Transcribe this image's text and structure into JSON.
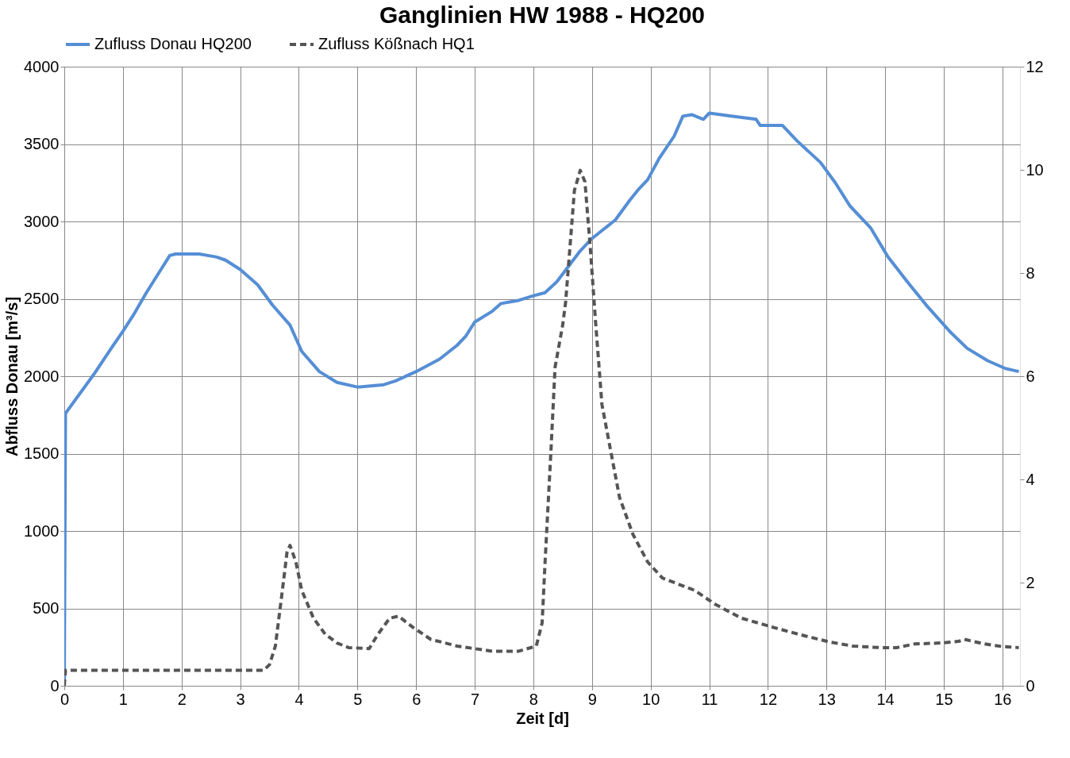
{
  "chart_data": {
    "type": "line",
    "title": "Ganglinien HW 1988 - HQ200",
    "xlabel": "Zeit [d]",
    "ylabel": "Abfluss Donau [m³/s]",
    "xlim": [
      0,
      16.3
    ],
    "xticks": [
      0,
      1,
      2,
      3,
      4,
      5,
      6,
      7,
      8,
      9,
      10,
      11,
      12,
      13,
      14,
      15,
      16
    ],
    "ylim": [
      0,
      4000
    ],
    "yticks": [
      0,
      500,
      1000,
      1500,
      2000,
      2500,
      3000,
      3500,
      4000
    ],
    "y2lim": [
      0,
      12
    ],
    "y2ticks": [
      0,
      2,
      4,
      6,
      8,
      10,
      12
    ],
    "grid": true,
    "legend": "top",
    "marker": "none",
    "series": [
      {
        "name": "Zufluss Donau HQ200",
        "color": "#558ed5",
        "line_style": "solid",
        "x": [
          0,
          0.02,
          0.5,
          0.8,
          1.0,
          1.17,
          1.4,
          1.6,
          1.8,
          1.9,
          2.3,
          2.6,
          2.75,
          3.0,
          3.3,
          3.55,
          3.85,
          4.05,
          4.35,
          4.65,
          5.0,
          5.45,
          5.65,
          6.0,
          6.4,
          6.7,
          6.85,
          7.0,
          7.3,
          7.45,
          7.75,
          8.0,
          8.2,
          8.4,
          8.6,
          8.8,
          9.0,
          9.4,
          9.65,
          9.8,
          9.95,
          10.15,
          10.4,
          10.55,
          10.7,
          10.9,
          11.0,
          11.4,
          11.8,
          11.87,
          12.25,
          12.5,
          12.9,
          13.15,
          13.4,
          13.75,
          14.05,
          14.4,
          14.7,
          15.1,
          15.4,
          15.75,
          16.05,
          16.28
        ],
        "values": [
          0,
          1760,
          2010,
          2180,
          2290,
          2390,
          2540,
          2660,
          2780,
          2790,
          2790,
          2770,
          2750,
          2690,
          2590,
          2460,
          2330,
          2160,
          2030,
          1960,
          1930,
          1945,
          1970,
          2030,
          2110,
          2200,
          2260,
          2350,
          2420,
          2470,
          2490,
          2520,
          2540,
          2610,
          2710,
          2810,
          2890,
          3010,
          3140,
          3210,
          3270,
          3410,
          3550,
          3680,
          3690,
          3660,
          3700,
          3680,
          3660,
          3620,
          3620,
          3520,
          3380,
          3250,
          3100,
          2960,
          2770,
          2600,
          2460,
          2290,
          2180,
          2100,
          2050,
          2030
        ]
      },
      {
        "name": "Zufluss Kößnach HQ1",
        "color": "#555555",
        "line_style": "dashed",
        "axis": "y2",
        "x": [
          0,
          0.02,
          3.4,
          3.5,
          3.6,
          3.7,
          3.8,
          3.85,
          3.95,
          4.05,
          4.25,
          4.45,
          4.65,
          4.85,
          5.2,
          5.35,
          5.55,
          5.7,
          5.95,
          6.25,
          6.7,
          7.3,
          7.75,
          8.05,
          8.15,
          8.2,
          8.3,
          8.37,
          8.5,
          8.55,
          8.65,
          8.7,
          8.8,
          8.88,
          8.97,
          9.06,
          9.17,
          9.32,
          9.47,
          9.7,
          9.95,
          10.2,
          10.45,
          10.75,
          11.1,
          11.55,
          12.1,
          12.55,
          13.05,
          13.45,
          13.9,
          14.2,
          14.5,
          14.95,
          15.25,
          15.35,
          15.7,
          16.0,
          16.28
        ],
        "values": [
          0,
          0.3,
          0.3,
          0.41,
          0.77,
          1.67,
          2.6,
          2.72,
          2.4,
          1.85,
          1.31,
          1.0,
          0.83,
          0.74,
          0.72,
          1.0,
          1.31,
          1.35,
          1.13,
          0.9,
          0.77,
          0.67,
          0.67,
          0.77,
          1.22,
          2.4,
          4.55,
          6.17,
          6.99,
          7.43,
          8.87,
          9.6,
          9.99,
          9.77,
          8.51,
          7.07,
          5.45,
          4.55,
          3.65,
          2.93,
          2.4,
          2.09,
          1.98,
          1.85,
          1.58,
          1.31,
          1.13,
          0.99,
          0.85,
          0.77,
          0.74,
          0.74,
          0.81,
          0.83,
          0.86,
          0.9,
          0.81,
          0.76,
          0.74
        ]
      }
    ]
  }
}
